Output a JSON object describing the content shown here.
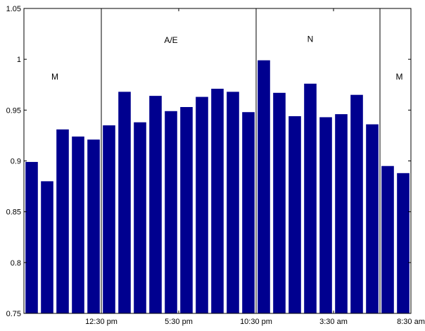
{
  "chart_data": {
    "type": "bar",
    "title": "",
    "xlabel": "",
    "ylabel": "",
    "ylim": [
      0.75,
      1.05
    ],
    "yticks": [
      "0.75",
      "0.8",
      "0.85",
      "0.9",
      "0.95",
      "1",
      "1.05"
    ],
    "xticks": [
      {
        "label": "12:30 pm",
        "index": 4.5
      },
      {
        "label": "5:30 pm",
        "index": 9.5
      },
      {
        "label": "10:30 pm",
        "index": 14.5
      },
      {
        "label": "3:30 am",
        "index": 19.5
      },
      {
        "label": "8:30 am",
        "index": 24.5
      }
    ],
    "bar_color": "#00008f",
    "values": [
      0.899,
      0.88,
      0.931,
      0.924,
      0.921,
      0.935,
      0.968,
      0.938,
      0.964,
      0.949,
      0.953,
      0.963,
      0.971,
      0.968,
      0.948,
      0.999,
      0.967,
      0.944,
      0.976,
      0.943,
      0.946,
      0.965,
      0.936,
      0.895,
      0.888
    ],
    "dividers": [
      4.5,
      14.5,
      22.5
    ],
    "regions": [
      {
        "label": "M",
        "x": 1.5,
        "y": 0.98
      },
      {
        "label": "A/E",
        "x": 9.0,
        "y": 1.016
      },
      {
        "label": "N",
        "x": 18.0,
        "y": 1.017
      },
      {
        "label": "M",
        "x": 23.75,
        "y": 0.98
      }
    ],
    "grid": false
  }
}
